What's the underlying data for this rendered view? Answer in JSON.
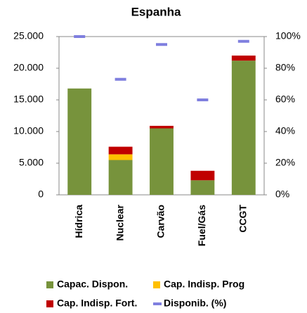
{
  "chart_data": {
    "type": "bar",
    "title": "Espanha",
    "categories": [
      "Hídrica",
      "Nuclear",
      "Carvão",
      "Fuel/Gás",
      "CCGT"
    ],
    "series": [
      {
        "name": "Capac. Dispon.",
        "color": "#77933c",
        "values": [
          16800,
          5500,
          10500,
          2300,
          21200
        ]
      },
      {
        "name": "Cap. Indisp. Prog",
        "color": "#ffc000",
        "values": [
          0,
          900,
          0,
          0,
          0
        ]
      },
      {
        "name": "Cap. Indisp. Fort.",
        "color": "#c00000",
        "values": [
          0,
          1200,
          400,
          1500,
          800
        ]
      },
      {
        "name": "Disponib. (%)",
        "color": "#7f7fdf",
        "axis": "y2",
        "values": [
          100,
          73,
          95,
          60,
          97
        ]
      }
    ],
    "ylim": [
      0,
      25000
    ],
    "yticks": [
      {
        "value": 0,
        "label": "0"
      },
      {
        "value": 5000,
        "label": "5.000"
      },
      {
        "value": 10000,
        "label": "10.000"
      },
      {
        "value": 15000,
        "label": "15.000"
      },
      {
        "value": 20000,
        "label": "20.000"
      },
      {
        "value": 25000,
        "label": "25.000"
      }
    ],
    "y2lim": [
      0,
      100
    ],
    "y2ticks": [
      {
        "value": 0,
        "label": "0%"
      },
      {
        "value": 20,
        "label": "20%"
      },
      {
        "value": 40,
        "label": "40%"
      },
      {
        "value": 60,
        "label": "60%"
      },
      {
        "value": 80,
        "label": "80%"
      },
      {
        "value": 100,
        "label": "100%"
      }
    ]
  }
}
